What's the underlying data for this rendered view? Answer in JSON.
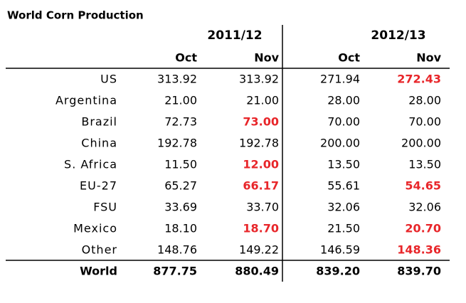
{
  "header": {
    "title": "World Corn Production",
    "periods": [
      "2011/12",
      "2012/13"
    ],
    "months": [
      "Oct",
      "Nov",
      "Oct",
      "Nov"
    ]
  },
  "highlight_color": "#e8262a",
  "table": {
    "rows": [
      {
        "label": "US",
        "values": [
          "313.92",
          "313.92",
          "271.94",
          "272.43"
        ],
        "red": [
          false,
          false,
          false,
          true
        ]
      },
      {
        "label": "Argentina",
        "values": [
          "21.00",
          "21.00",
          "28.00",
          "28.00"
        ],
        "red": [
          false,
          false,
          false,
          false
        ]
      },
      {
        "label": "Brazil",
        "values": [
          "72.73",
          "73.00",
          "70.00",
          "70.00"
        ],
        "red": [
          false,
          true,
          false,
          false
        ]
      },
      {
        "label": "China",
        "values": [
          "192.78",
          "192.78",
          "200.00",
          "200.00"
        ],
        "red": [
          false,
          false,
          false,
          false
        ]
      },
      {
        "label": "S. Africa",
        "values": [
          "11.50",
          "12.00",
          "13.50",
          "13.50"
        ],
        "red": [
          false,
          true,
          false,
          false
        ]
      },
      {
        "label": "EU-27",
        "values": [
          "65.27",
          "66.17",
          "55.61",
          "54.65"
        ],
        "red": [
          false,
          true,
          false,
          true
        ]
      },
      {
        "label": "FSU",
        "values": [
          "33.69",
          "33.70",
          "32.06",
          "32.06"
        ],
        "red": [
          false,
          false,
          false,
          false
        ]
      },
      {
        "label": "Mexico",
        "values": [
          "18.10",
          "18.70",
          "21.50",
          "20.70"
        ],
        "red": [
          false,
          true,
          false,
          true
        ]
      },
      {
        "label": "Other",
        "values": [
          "148.76",
          "149.22",
          "146.59",
          "148.36"
        ],
        "red": [
          false,
          false,
          false,
          true
        ]
      }
    ],
    "total": {
      "label": "World",
      "values": [
        "877.75",
        "880.49",
        "839.20",
        "839.70"
      ]
    }
  }
}
